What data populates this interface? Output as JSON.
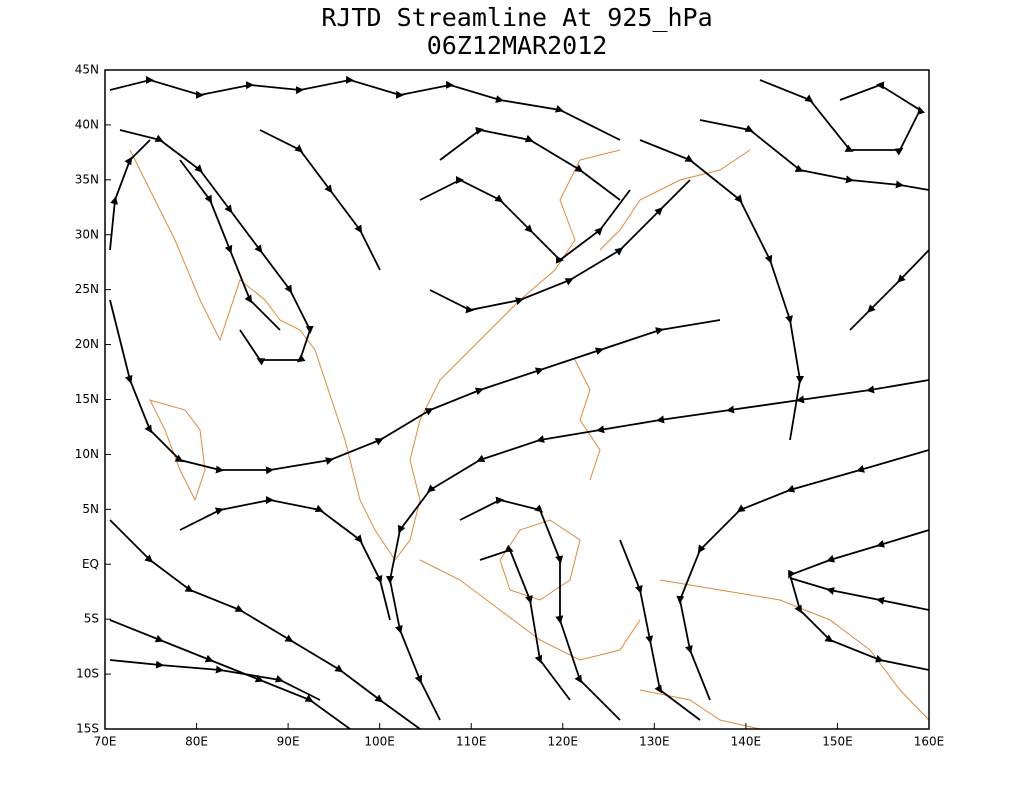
{
  "chart_data": {
    "type": "streamline",
    "title": "RJTD Streamline At 925_hPa",
    "subtitle": "06Z12MAR2012",
    "xlim": [
      70,
      160
    ],
    "ylim": [
      -15,
      45
    ],
    "xticks": [
      {
        "value": 70,
        "label": "70E"
      },
      {
        "value": 80,
        "label": "80E"
      },
      {
        "value": 90,
        "label": "90E"
      },
      {
        "value": 100,
        "label": "100E"
      },
      {
        "value": 110,
        "label": "110E"
      },
      {
        "value": 120,
        "label": "120E"
      },
      {
        "value": 130,
        "label": "130E"
      },
      {
        "value": 140,
        "label": "140E"
      },
      {
        "value": 150,
        "label": "150E"
      },
      {
        "value": 160,
        "label": "160E"
      }
    ],
    "yticks": [
      {
        "value": -15,
        "label": "15S"
      },
      {
        "value": -10,
        "label": "10S"
      },
      {
        "value": -5,
        "label": "5S"
      },
      {
        "value": 0,
        "label": "EQ"
      },
      {
        "value": 5,
        "label": "5N"
      },
      {
        "value": 10,
        "label": "10N"
      },
      {
        "value": 15,
        "label": "15N"
      },
      {
        "value": 20,
        "label": "20N"
      },
      {
        "value": 25,
        "label": "25N"
      },
      {
        "value": 30,
        "label": "30N"
      },
      {
        "value": 35,
        "label": "35N"
      },
      {
        "value": 40,
        "label": "40N"
      },
      {
        "value": 45,
        "label": "45N"
      }
    ]
  }
}
